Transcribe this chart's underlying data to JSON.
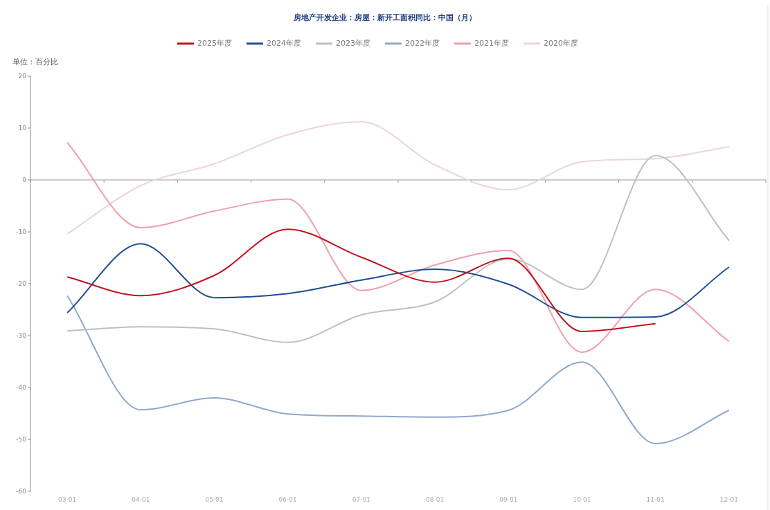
{
  "chart_data": {
    "type": "line",
    "title": "房地产开发企业：房屋：新开工面积同比：中国（月）",
    "ylabel": "单位：百分比",
    "categories": [
      "03-01",
      "04-01",
      "05-01",
      "06-01",
      "07-01",
      "08-01",
      "09-01",
      "10-01",
      "11-01",
      "12-01"
    ],
    "series": [
      {
        "name": "2025年度",
        "color": "#c0141e",
        "values": [
          -18.7,
          -22.3,
          -18.4,
          -9.5,
          -14.9,
          -19.7,
          -15.1,
          -29.2,
          -27.7,
          null
        ]
      },
      {
        "name": "2024年度",
        "color": "#1f4e91",
        "values": [
          -25.6,
          -12.3,
          -22.7,
          -21.9,
          -19.3,
          -17.2,
          -20.1,
          -26.5,
          -26.4,
          -16.8
        ]
      },
      {
        "name": "2023年度",
        "color": "#bfbfbf",
        "values": [
          -29.1,
          -28.3,
          -28.7,
          -31.3,
          -26.0,
          -23.5,
          -15.2,
          -21.1,
          4.7,
          -11.7
        ]
      },
      {
        "name": "2022年度",
        "color": "#8fa8cc",
        "values": [
          -22.3,
          -44.3,
          -42.0,
          -45.1,
          -45.5,
          -45.7,
          -44.4,
          -35.1,
          -50.8,
          -44.4
        ]
      },
      {
        "name": "2021年度",
        "color": "#f0a0aa",
        "values": [
          7.2,
          -9.2,
          -6.0,
          -3.7,
          -21.3,
          -16.4,
          -13.6,
          -33.2,
          -21.1,
          -31.1
        ]
      },
      {
        "name": "2020年度",
        "color": "#ecd4d8",
        "values": [
          -10.4,
          -1.1,
          3.1,
          8.7,
          11.2,
          2.9,
          -1.9,
          3.5,
          4.1,
          6.4
        ]
      }
    ],
    "ylim": [
      -60,
      20
    ],
    "yticks": [
      -60,
      -50,
      -40,
      -30,
      -20,
      -10,
      0,
      10,
      20
    ],
    "legend": "top",
    "marker": "none",
    "line_style": "solid"
  }
}
